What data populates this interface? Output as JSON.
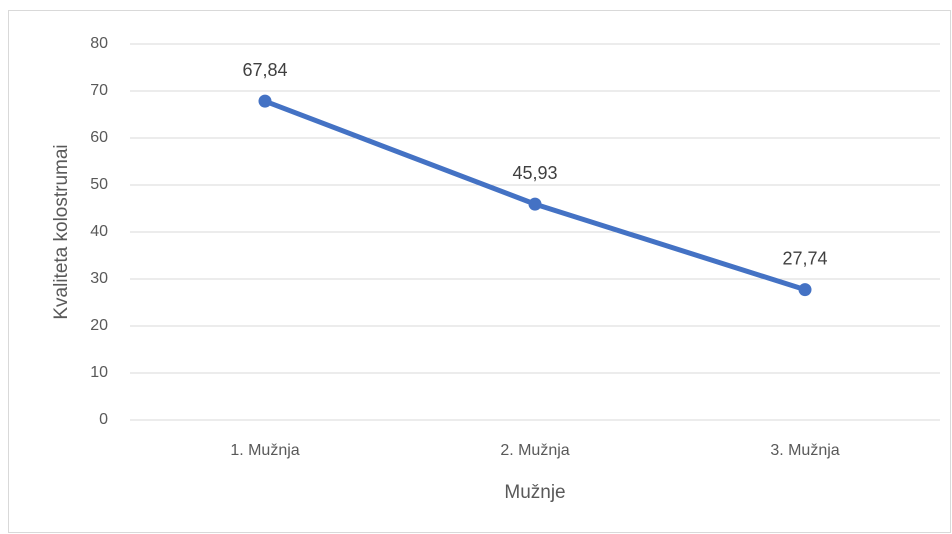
{
  "chart_data": {
    "type": "line",
    "x_label": "Mužnje",
    "y_label": "Kvaliteta kolostrumai",
    "categories": [
      "1. Mužnja",
      "2. Mužnja",
      "3. Mužnja"
    ],
    "series": [
      {
        "name": "Kvaliteta kolostrumai",
        "color": "#4472c4",
        "values": [
          67.84,
          45.93,
          27.74
        ],
        "value_labels": [
          "67,84",
          "45,93",
          "27,74"
        ]
      }
    ],
    "ylim": [
      0,
      80
    ],
    "yticks": [
      0,
      10,
      20,
      30,
      40,
      50,
      60,
      70,
      80
    ],
    "grid": true
  }
}
